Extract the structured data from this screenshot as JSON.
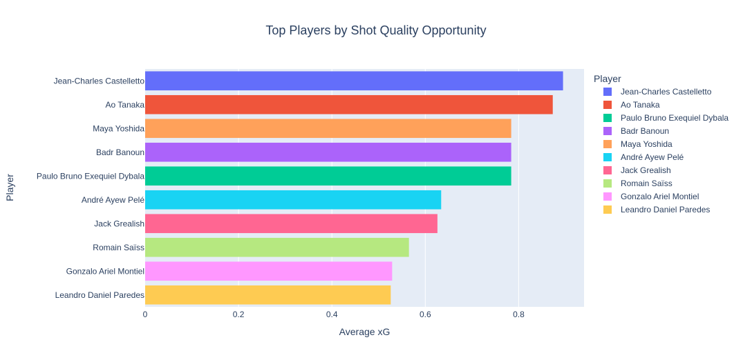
{
  "chart_data": {
    "type": "bar",
    "orientation": "horizontal",
    "title": "Top Players by Shot Quality Opportunity",
    "xlabel": "Average xG",
    "ylabel": "Player",
    "xlim": [
      0,
      0.94
    ],
    "xticks": [
      0,
      0.2,
      0.4,
      0.6,
      0.8
    ],
    "xtick_labels": [
      "0",
      "0.2",
      "0.4",
      "0.6",
      "0.8"
    ],
    "grid": true,
    "categories": [
      "Jean-Charles Castelletto",
      "Ao Tanaka",
      "Maya Yoshida",
      "Badr Banoun",
      "Paulo Bruno Exequiel Dybala",
      "André Ayew Pelé",
      "Jack Grealish",
      "Romain Saïss",
      "Gonzalo Ariel Montiel",
      "Leandro Daniel Paredes"
    ],
    "values": [
      0.895,
      0.873,
      0.784,
      0.784,
      0.784,
      0.634,
      0.626,
      0.565,
      0.529,
      0.526
    ],
    "colors": [
      "#636efa",
      "#ef553b",
      "#ffa15a",
      "#ab63fa",
      "#00cc96",
      "#19d3f3",
      "#ff6692",
      "#b6e880",
      "#ff97ff",
      "#fecb52"
    ],
    "legend": {
      "title": "Player",
      "placement": "right",
      "entries": [
        {
          "name": "Jean-Charles Castelletto",
          "color": "#636efa"
        },
        {
          "name": "Ao Tanaka",
          "color": "#ef553b"
        },
        {
          "name": "Paulo Bruno Exequiel Dybala",
          "color": "#00cc96"
        },
        {
          "name": "Badr Banoun",
          "color": "#ab63fa"
        },
        {
          "name": "Maya Yoshida",
          "color": "#ffa15a"
        },
        {
          "name": "André Ayew Pelé",
          "color": "#19d3f3"
        },
        {
          "name": "Jack Grealish",
          "color": "#ff6692"
        },
        {
          "name": "Romain Saïss",
          "color": "#b6e880"
        },
        {
          "name": "Gonzalo Ariel Montiel",
          "color": "#ff97ff"
        },
        {
          "name": "Leandro Daniel Paredes",
          "color": "#fecb52"
        }
      ]
    },
    "plot_background": "#e5ecf6"
  }
}
